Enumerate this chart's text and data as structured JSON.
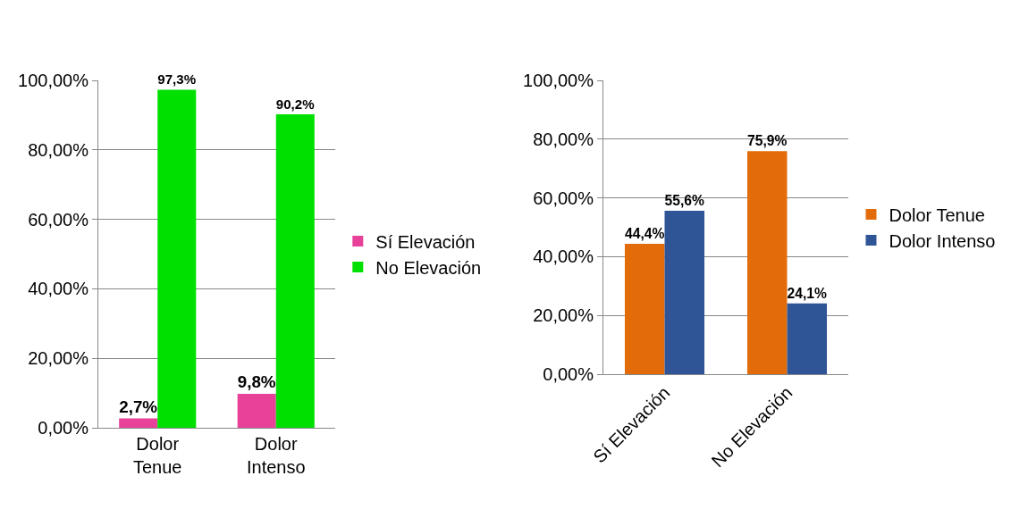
{
  "chart_data": [
    {
      "type": "bar",
      "categories": [
        "Dolor Tenue",
        "Dolor Intenso"
      ],
      "ylim": [
        0,
        100
      ],
      "yticks": [
        {
          "value": 0,
          "label": "0,00%"
        },
        {
          "value": 20,
          "label": "20,00%"
        },
        {
          "value": 40,
          "label": "40,00%"
        },
        {
          "value": 60,
          "label": "60,00%"
        },
        {
          "value": 80,
          "label": "80,00%"
        },
        {
          "value": 100,
          "label": "100,00%"
        }
      ],
      "grid": "y",
      "legend": "right",
      "series": [
        {
          "name": "Sí Elevación",
          "color": "#e8419a",
          "values": [
            2.7,
            9.8
          ],
          "value_labels": [
            "2,7%",
            "9,8%"
          ]
        },
        {
          "name": "No Elevación",
          "color": "#00e000",
          "values": [
            97.3,
            90.2
          ],
          "value_labels": [
            "97,3%",
            "90,2%"
          ]
        }
      ]
    },
    {
      "type": "bar",
      "categories": [
        "Sí Elevación",
        "No Elevación"
      ],
      "ylim": [
        0,
        100
      ],
      "yticks": [
        {
          "value": 0,
          "label": "0,00%"
        },
        {
          "value": 20,
          "label": "20,00%"
        },
        {
          "value": 40,
          "label": "40,00%"
        },
        {
          "value": 60,
          "label": "60,00%"
        },
        {
          "value": 80,
          "label": "80,00%"
        },
        {
          "value": 100,
          "label": "100,00%"
        }
      ],
      "grid": "y",
      "legend": "right",
      "series": [
        {
          "name": "Dolor Tenue",
          "color": "#e36c0a",
          "values": [
            44.4,
            75.9
          ],
          "value_labels": [
            "44,4%",
            "75,9%"
          ]
        },
        {
          "name": "Dolor Intenso",
          "color": "#2f5597",
          "values": [
            55.6,
            24.1
          ],
          "value_labels": [
            "55,6%",
            "24,1%"
          ]
        }
      ]
    }
  ]
}
